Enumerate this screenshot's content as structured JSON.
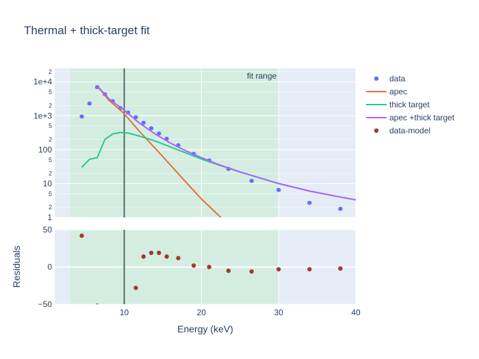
{
  "chart_data": {
    "type": "scatter",
    "title": "Thermal + thick-target fit",
    "xlabel": "Energy (keV)",
    "residual_ylabel": "Residuals",
    "x_range": [
      1,
      40
    ],
    "main_yscale": "log",
    "main_ylim": [
      1,
      25000
    ],
    "residual_ylim": [
      -50,
      50
    ],
    "x_ticks": [
      "10",
      "20",
      "30",
      "40"
    ],
    "x_tick_values": [
      10,
      20,
      30,
      40
    ],
    "y_major_ticks": [
      {
        "value": 1,
        "label": "1"
      },
      {
        "value": 10,
        "label": "10"
      },
      {
        "value": 100,
        "label": "100"
      },
      {
        "value": 1000,
        "label": "1e+3"
      },
      {
        "value": 10000,
        "label": "1e+4"
      }
    ],
    "y_minor_ticks": [
      {
        "value": 2,
        "label": "2"
      },
      {
        "value": 5,
        "label": "5"
      },
      {
        "value": 20,
        "label": "2"
      },
      {
        "value": 50,
        "label": "5"
      },
      {
        "value": 200,
        "label": "2"
      },
      {
        "value": 500,
        "label": "5"
      },
      {
        "value": 2000,
        "label": "2"
      },
      {
        "value": 5000,
        "label": "5"
      },
      {
        "value": 20000,
        "label": "2"
      }
    ],
    "residual_ticks": [
      {
        "value": 50,
        "label": "50"
      },
      {
        "value": 0,
        "label": "0"
      },
      {
        "value": -50,
        "label": "−50"
      }
    ],
    "fit_range": {
      "x0": 3,
      "x1": 30,
      "label": "fit range"
    },
    "vline_x": 10,
    "colors": {
      "data": "#636efa",
      "apec": "#e1703d",
      "thick_target": "#1fc994",
      "apec_thick": "#ab63fa",
      "residual": "#a23a2e",
      "fit_band": "#d4ede0",
      "plot_bg": "#e5ecf6",
      "vline": "#4a6b6b"
    },
    "series": [
      {
        "name": "data",
        "mode": "markers",
        "x": [
          4.5,
          5.5,
          6.5,
          7.5,
          8.5,
          9.5,
          10.5,
          11.5,
          12.5,
          13.5,
          14.5,
          15.5,
          17,
          19,
          21,
          23.5,
          26.5,
          30,
          34,
          38
        ],
        "y": [
          950,
          2300,
          7000,
          4300,
          2700,
          1700,
          1250,
          900,
          620,
          430,
          300,
          210,
          135,
          75,
          48,
          27,
          12,
          6.5,
          2.7,
          1.8
        ]
      },
      {
        "name": "apec",
        "mode": "lines",
        "x": [
          6.5,
          8,
          10,
          12,
          14,
          16,
          18,
          20,
          22.5
        ],
        "y": [
          7500,
          2900,
          1150,
          340,
          110,
          35,
          11,
          3.5,
          1
        ]
      },
      {
        "name": "thick target",
        "mode": "lines",
        "x": [
          4.5,
          5.5,
          6.5,
          7.5,
          8.5,
          9.5,
          10.5,
          12,
          14,
          16,
          18,
          20,
          22,
          25,
          30,
          34,
          38,
          40
        ],
        "y": [
          30,
          52,
          58,
          200,
          290,
          320,
          310,
          250,
          180,
          120,
          80,
          53,
          37,
          22,
          10,
          6,
          4,
          3.3
        ]
      },
      {
        "name": "apec +thick target",
        "mode": "lines",
        "x": [
          6.5,
          8,
          10,
          12,
          14,
          16,
          18,
          20,
          22,
          25,
          30,
          34,
          38,
          40
        ],
        "y": [
          7600,
          3200,
          1450,
          600,
          290,
          155,
          92,
          58,
          38,
          22,
          10,
          6,
          4,
          3.3
        ]
      },
      {
        "name": "data-model",
        "mode": "markers",
        "panel": "residual",
        "x": [
          4.5,
          6.5,
          11.5,
          12.5,
          13.5,
          14.5,
          15.5,
          17,
          19,
          21,
          23.5,
          26.5,
          30,
          34,
          38
        ],
        "y": [
          42,
          -52,
          -28,
          14,
          19,
          19,
          14,
          12,
          2,
          0,
          -5,
          -6,
          -3,
          -3,
          -2
        ]
      }
    ]
  }
}
